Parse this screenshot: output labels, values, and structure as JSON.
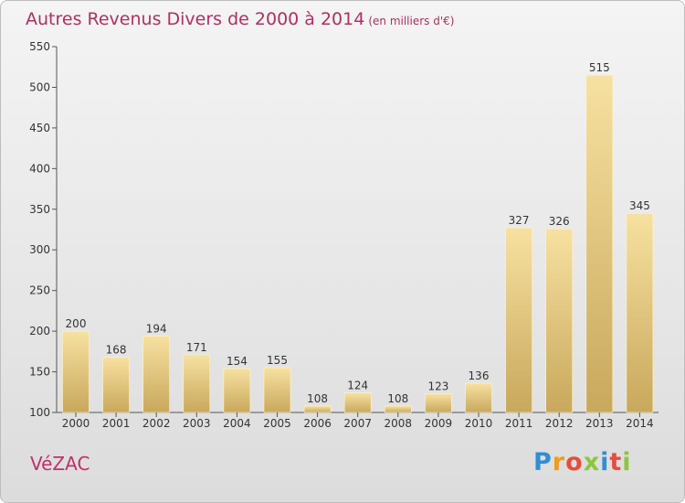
{
  "header": {
    "title": "Autres Revenus Divers de 2000 à 2014",
    "subtitle": "(en milliers d'€)"
  },
  "footer": {
    "place": "VéZAC",
    "logo_text": "Proxiti",
    "logo_colors": [
      "#2f8fd1",
      "#f39c12",
      "#e74c3c",
      "#8cc63f",
      "#2f8fd1",
      "#e74c3c",
      "#8cc63f"
    ]
  },
  "colors": {
    "title": "#b03060",
    "bar_light": "#f6dc97",
    "bar_dark": "#c9a95c"
  },
  "chart_data": {
    "type": "bar",
    "title": "Autres Revenus Divers de 2000 à 2014",
    "subtitle": "(en milliers d'€)",
    "categories": [
      "2000",
      "2001",
      "2002",
      "2003",
      "2004",
      "2005",
      "2006",
      "2007",
      "2008",
      "2009",
      "2010",
      "2011",
      "2012",
      "2013",
      "2014"
    ],
    "values": [
      200,
      168,
      194,
      171,
      154,
      155,
      108,
      124,
      108,
      123,
      136,
      327,
      326,
      515,
      345
    ],
    "ylim": [
      100,
      550
    ],
    "yticks": [
      100,
      150,
      200,
      250,
      300,
      350,
      400,
      450,
      500,
      550
    ],
    "grid": false,
    "xlabel": "",
    "ylabel": ""
  }
}
